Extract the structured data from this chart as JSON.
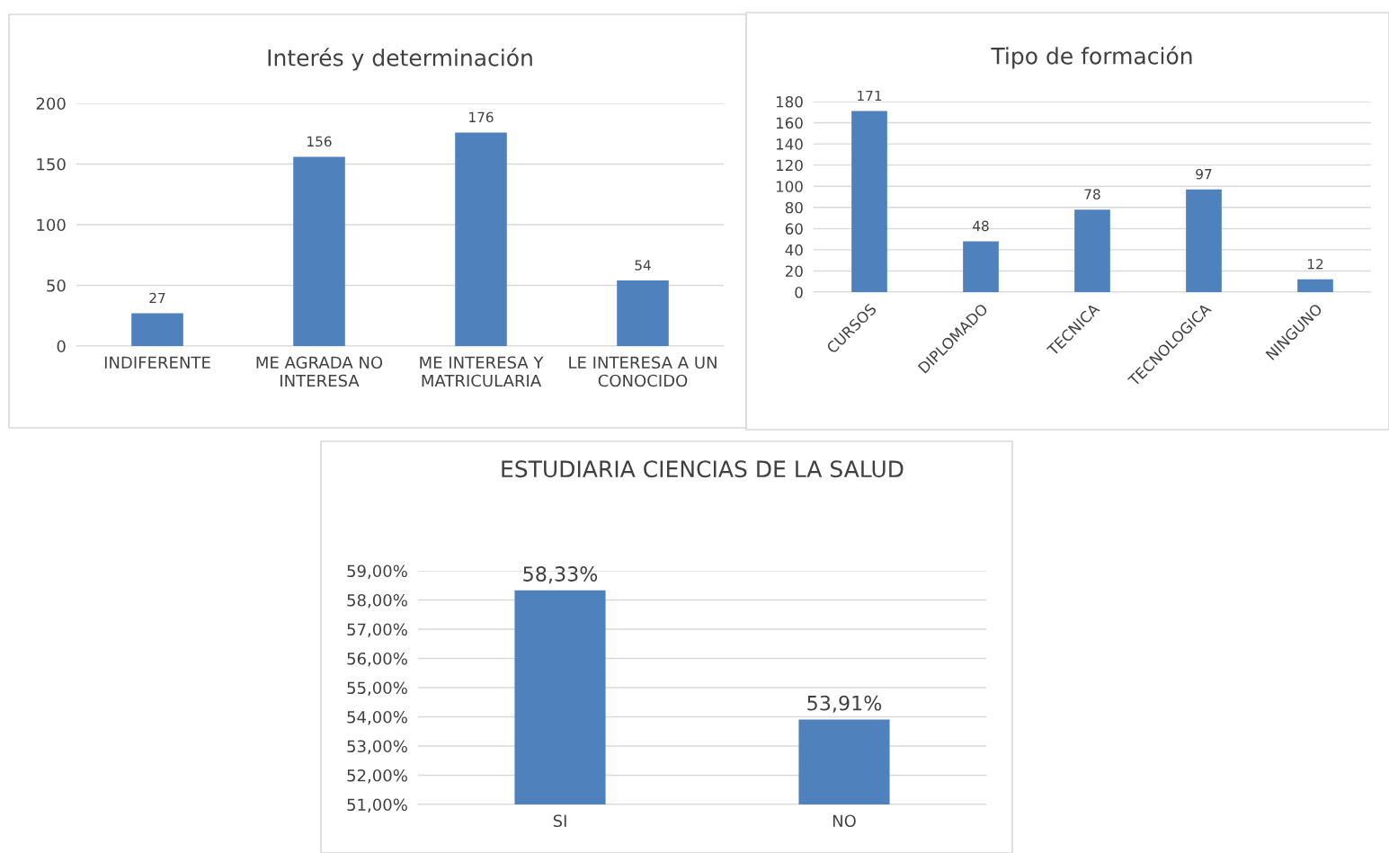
{
  "chart_data": [
    {
      "type": "bar",
      "title": "Interés y determinación",
      "categories": [
        "INDIFERENTE",
        "ME AGRADA NO\nINTERESA",
        "ME INTERESA Y\nMATRICULARIA",
        "LE INTERESA A UN\nCONOCIDO"
      ],
      "values": [
        27,
        156,
        176,
        54
      ],
      "color": "#4f81bd",
      "ylim": [
        0,
        200
      ],
      "yticks": [
        0,
        50,
        100,
        150,
        200
      ],
      "grid": "y",
      "data_labels": true
    },
    {
      "type": "bar",
      "title": "Tipo de formación",
      "categories": [
        "CURSOS",
        "DIPLOMADO",
        "TECNICA",
        "TECNOLOGICA",
        "NINGUNO"
      ],
      "values": [
        171,
        48,
        78,
        97,
        12
      ],
      "color": "#4f81bd",
      "ylim": [
        0,
        180
      ],
      "yticks": [
        0,
        20,
        40,
        60,
        80,
        100,
        120,
        140,
        160,
        180
      ],
      "grid": "y",
      "data_labels": true
    },
    {
      "type": "bar",
      "title": "ESTUDIARIA CIENCIAS DE LA SALUD",
      "categories": [
        "SI",
        "NO"
      ],
      "values": [
        58.33,
        53.91
      ],
      "value_labels": [
        "58,33%",
        "53,91%"
      ],
      "color": "#4f81bd",
      "ylim": [
        51,
        59
      ],
      "yticks": [
        {
          "value": 51,
          "label": "51,00%"
        },
        {
          "value": 52,
          "label": "52,00%"
        },
        {
          "value": 53,
          "label": "53,00%"
        },
        {
          "value": 54,
          "label": "54,00%"
        },
        {
          "value": 55,
          "label": "55,00%"
        },
        {
          "value": 56,
          "label": "56,00%"
        },
        {
          "value": 57,
          "label": "57,00%"
        },
        {
          "value": 58,
          "label": "58,00%"
        },
        {
          "value": 59,
          "label": "59,00%"
        }
      ],
      "grid": "y"
    }
  ]
}
